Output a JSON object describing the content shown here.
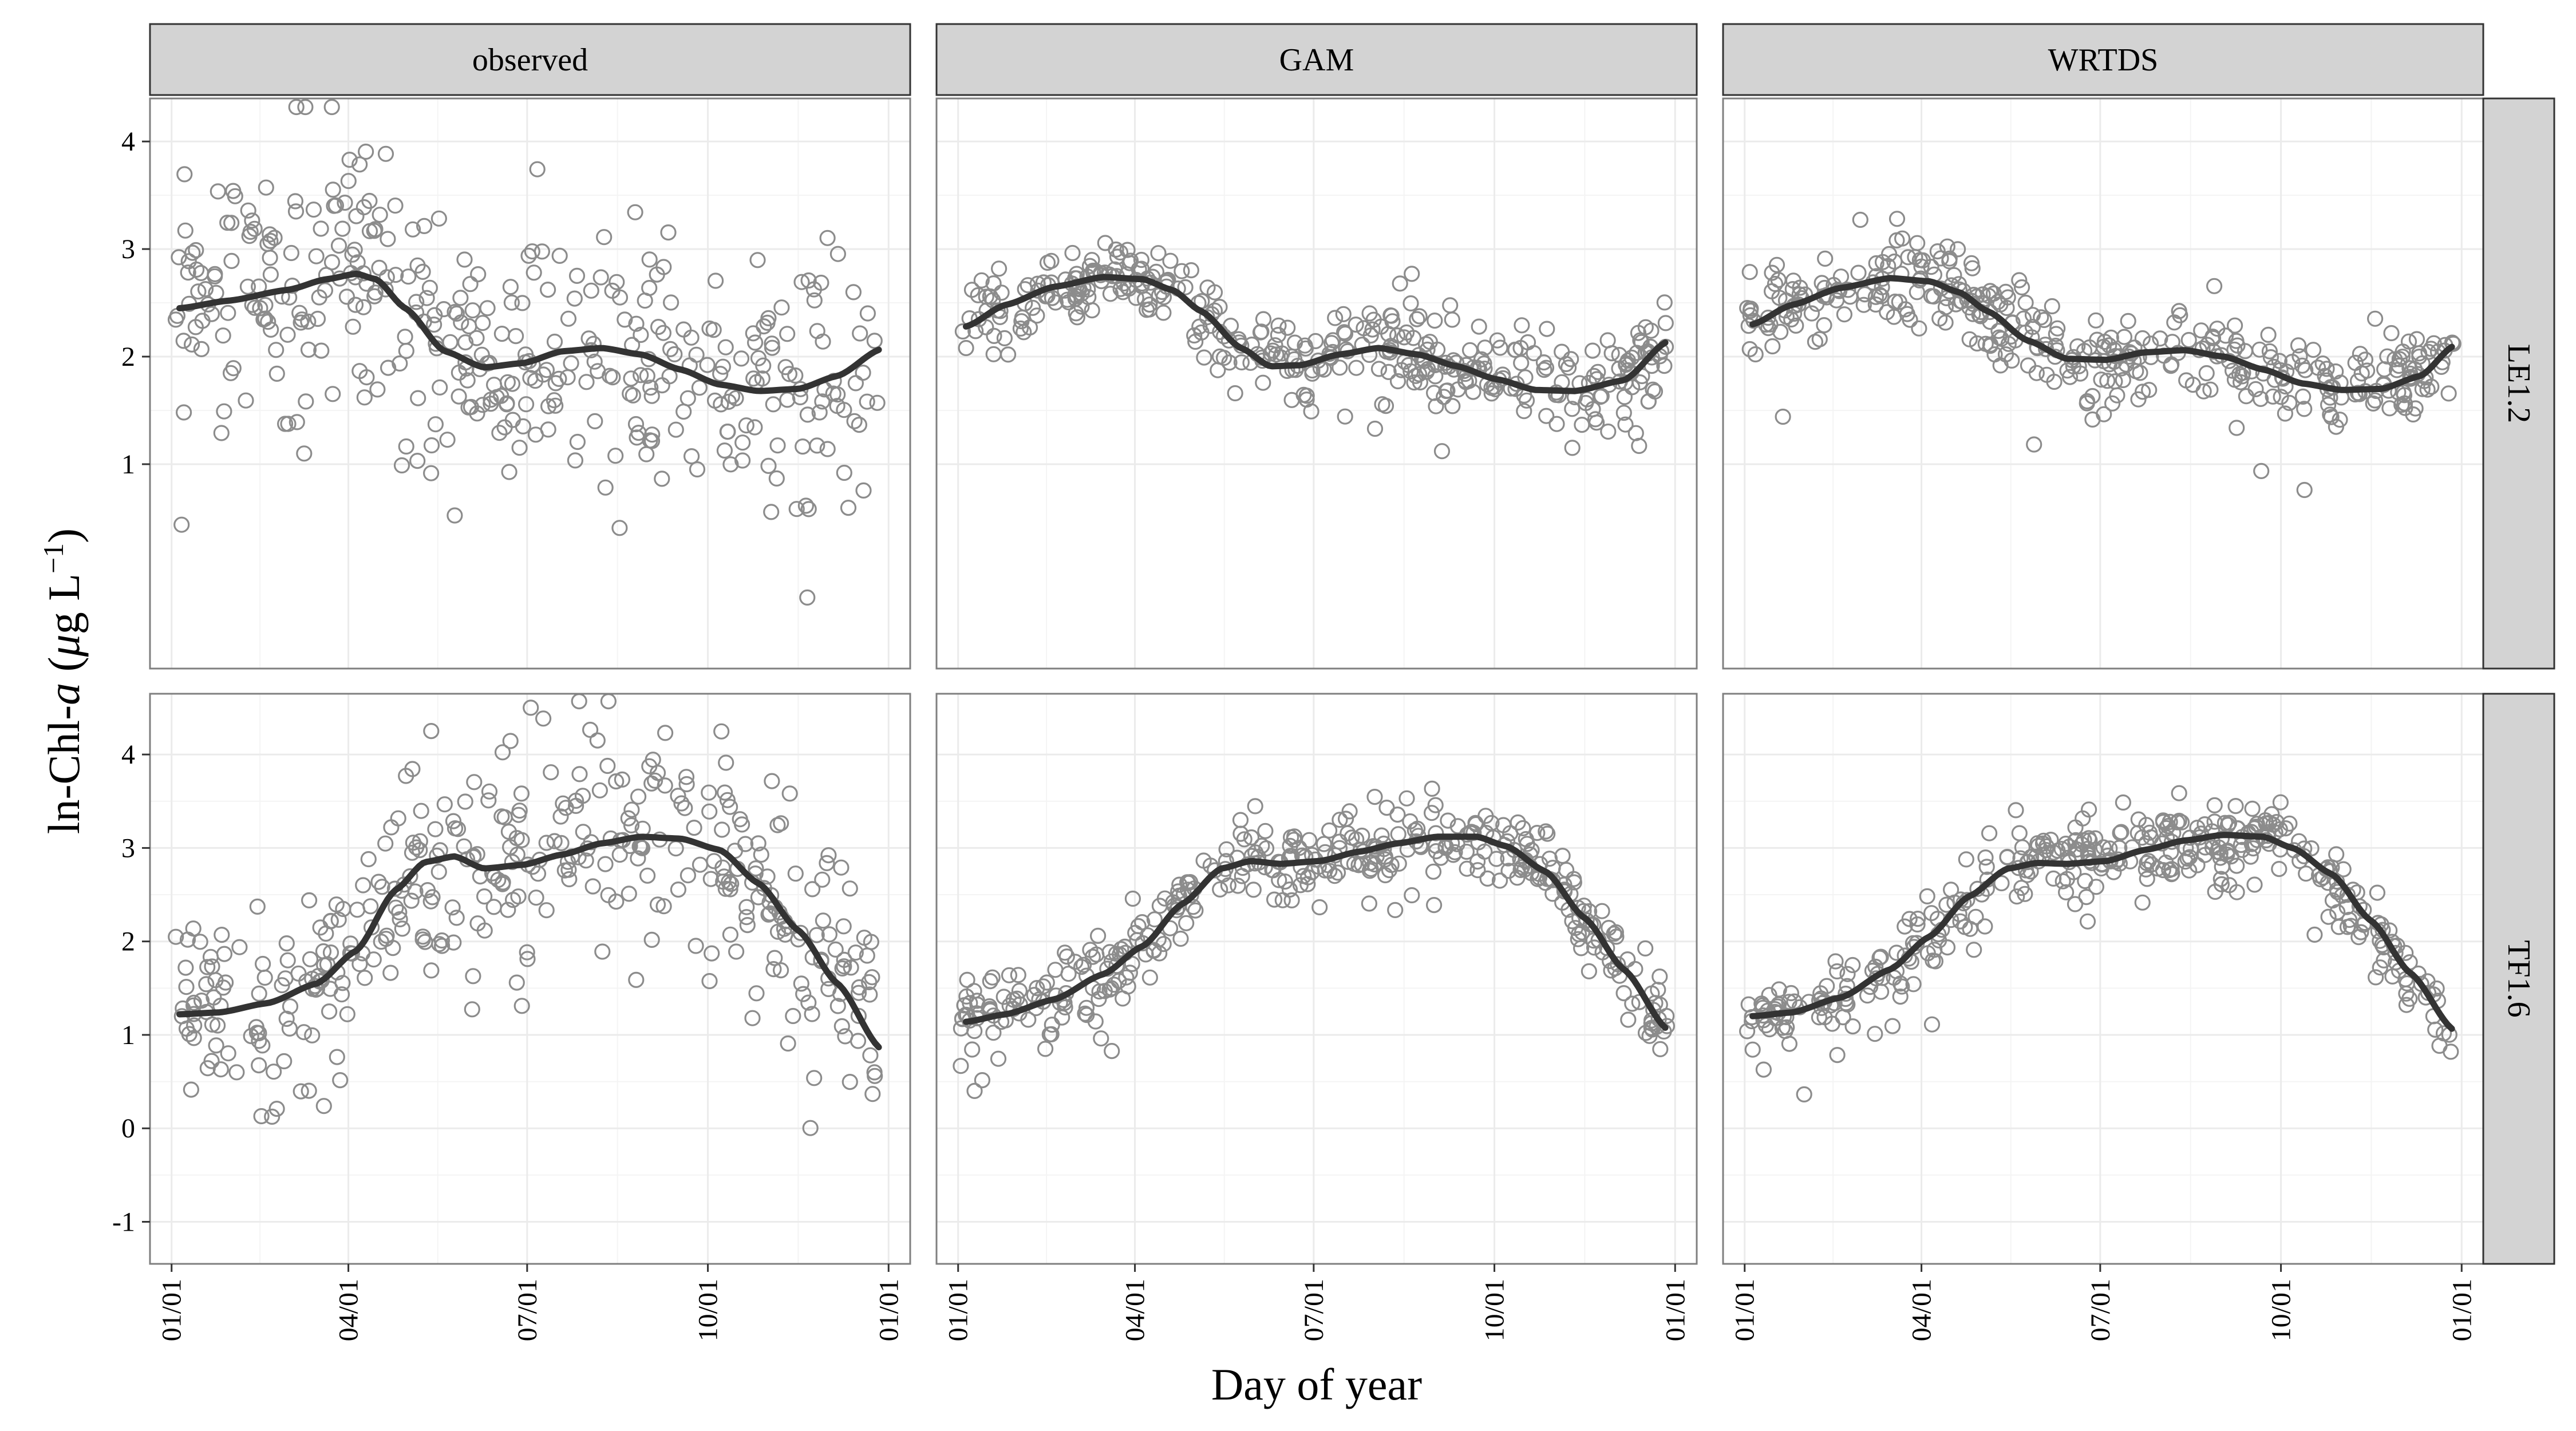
{
  "chart_data": {
    "type": "scatter",
    "title": "",
    "xlabel": "Day of year",
    "ylabel": {
      "prefix": "ln-Chl-",
      "italic": "a",
      "units_open": " (",
      "mu": "μ",
      "units_mid": "g L",
      "sup": "−1",
      "units_close": ")"
    },
    "x_ticks": [
      {
        "day": 1,
        "label": "01/01"
      },
      {
        "day": 91,
        "label": "04/01"
      },
      {
        "day": 182,
        "label": "07/01"
      },
      {
        "day": 274,
        "label": "10/01"
      },
      {
        "day": 366,
        "label": "01/01"
      }
    ],
    "xlim": [
      -10,
      377
    ],
    "rows": [
      {
        "strip": "LE1.2",
        "ylim": [
          -0.9,
          4.4
        ],
        "y_ticks": [
          1,
          2,
          3,
          4
        ]
      },
      {
        "strip": "TF1.6",
        "ylim": [
          -1.45,
          4.65
        ],
        "y_ticks": [
          -1,
          0,
          1,
          2,
          3,
          4
        ]
      }
    ],
    "columns": [
      "observed",
      "GAM",
      "WRTDS"
    ],
    "grid": true,
    "legend": "none",
    "colors": {
      "points": "#8c8c8c",
      "smooth": "#333333",
      "strip_fill": "#d3d3d3",
      "panel_border": "#7f7f7f",
      "grid": "#ebebeb"
    },
    "smooth_lines": {
      "LE1.2": {
        "observed": {
          "x": [
            5,
            30,
            60,
            80,
            95,
            105,
            120,
            140,
            160,
            180,
            200,
            220,
            240,
            260,
            280,
            300,
            320,
            340,
            362
          ],
          "y": [
            2.45,
            2.52,
            2.62,
            2.72,
            2.77,
            2.72,
            2.45,
            2.05,
            1.9,
            1.94,
            2.05,
            2.08,
            2.02,
            1.88,
            1.74,
            1.68,
            1.7,
            1.82,
            2.07
          ]
        },
        "GAM": {
          "x": [
            5,
            25,
            50,
            75,
            95,
            110,
            125,
            145,
            160,
            175,
            195,
            215,
            235,
            255,
            275,
            295,
            315,
            340,
            362
          ],
          "y": [
            2.28,
            2.48,
            2.65,
            2.74,
            2.72,
            2.62,
            2.42,
            2.08,
            1.91,
            1.92,
            2.02,
            2.08,
            2.02,
            1.91,
            1.79,
            1.69,
            1.68,
            1.78,
            2.14
          ]
        },
        "WRTDS": {
          "x": [
            5,
            25,
            50,
            75,
            95,
            110,
            125,
            145,
            165,
            185,
            205,
            225,
            245,
            265,
            285,
            305,
            325,
            345,
            362
          ],
          "y": [
            2.3,
            2.48,
            2.64,
            2.73,
            2.7,
            2.6,
            2.42,
            2.15,
            1.98,
            1.97,
            2.04,
            2.06,
            2.0,
            1.88,
            1.75,
            1.69,
            1.7,
            1.82,
            2.1
          ]
        }
      },
      "TF1.6": {
        "observed": {
          "x": [
            5,
            25,
            50,
            75,
            95,
            115,
            130,
            145,
            160,
            180,
            200,
            220,
            240,
            260,
            280,
            300,
            320,
            340,
            362
          ],
          "y": [
            1.22,
            1.24,
            1.34,
            1.55,
            1.9,
            2.55,
            2.85,
            2.91,
            2.78,
            2.82,
            2.93,
            3.05,
            3.12,
            3.1,
            2.98,
            2.62,
            2.12,
            1.55,
            0.85
          ]
        },
        "GAM": {
          "x": [
            5,
            25,
            50,
            75,
            95,
            115,
            135,
            150,
            165,
            185,
            205,
            225,
            245,
            265,
            280,
            300,
            320,
            340,
            362
          ],
          "y": [
            1.14,
            1.22,
            1.38,
            1.65,
            1.95,
            2.4,
            2.78,
            2.86,
            2.83,
            2.86,
            2.96,
            3.05,
            3.12,
            3.12,
            3.02,
            2.75,
            2.25,
            1.7,
            1.06
          ]
        },
        "WRTDS": {
          "x": [
            5,
            25,
            50,
            75,
            95,
            115,
            135,
            150,
            165,
            185,
            205,
            225,
            245,
            265,
            280,
            300,
            320,
            340,
            362
          ],
          "y": [
            1.2,
            1.24,
            1.4,
            1.7,
            2.05,
            2.48,
            2.78,
            2.84,
            2.83,
            2.86,
            2.98,
            3.08,
            3.14,
            3.12,
            3.0,
            2.72,
            2.22,
            1.66,
            1.05
          ]
        }
      }
    },
    "points_note": "~400 open-circle observations per panel scattered around the smooth lines",
    "point_spread": {
      "observed": 0.75,
      "GAM": 0.28,
      "WRTDS": 0.28
    }
  }
}
